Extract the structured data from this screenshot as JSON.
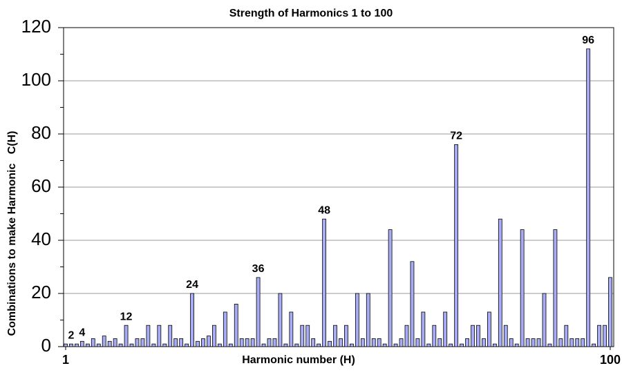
{
  "chart_data": {
    "type": "bar",
    "title": "Strength of Harmonics 1 to 100",
    "x_label": "Harmonic number (H)",
    "y_label": "Combinations to make Harmonic   C(H)",
    "x": [
      1,
      2,
      3,
      4,
      5,
      6,
      7,
      8,
      9,
      10,
      11,
      12,
      13,
      14,
      15,
      16,
      17,
      18,
      19,
      20,
      21,
      22,
      23,
      24,
      25,
      26,
      27,
      28,
      29,
      30,
      31,
      32,
      33,
      34,
      35,
      36,
      37,
      38,
      39,
      40,
      41,
      42,
      43,
      44,
      45,
      46,
      47,
      48,
      49,
      50,
      51,
      52,
      53,
      54,
      55,
      56,
      57,
      58,
      59,
      60,
      61,
      62,
      63,
      64,
      65,
      66,
      67,
      68,
      69,
      70,
      71,
      72,
      73,
      74,
      75,
      76,
      77,
      78,
      79,
      80,
      81,
      82,
      83,
      84,
      85,
      86,
      87,
      88,
      89,
      90,
      91,
      92,
      93,
      94,
      95,
      96,
      97,
      98,
      99,
      100
    ],
    "values": [
      1,
      1,
      1,
      2,
      1,
      3,
      1,
      4,
      2,
      3,
      1,
      8,
      1,
      3,
      3,
      8,
      1,
      8,
      1,
      8,
      3,
      3,
      1,
      20,
      2,
      3,
      4,
      8,
      1,
      13,
      1,
      16,
      3,
      3,
      3,
      26,
      1,
      3,
      3,
      20,
      1,
      13,
      1,
      8,
      8,
      3,
      1,
      48,
      2,
      8,
      3,
      8,
      1,
      20,
      3,
      20,
      3,
      3,
      1,
      44,
      1,
      3,
      8,
      32,
      3,
      13,
      1,
      8,
      3,
      13,
      1,
      76,
      1,
      3,
      8,
      8,
      3,
      13,
      1,
      48,
      8,
      3,
      1,
      44,
      3,
      3,
      3,
      20,
      1,
      44,
      3,
      8,
      3,
      3,
      3,
      112,
      1,
      8,
      8,
      26
    ],
    "color": "#a8acf4",
    "xlim": [
      1,
      100
    ],
    "xticks": [
      1,
      100
    ],
    "ylim": [
      0,
      120
    ],
    "yticks": [
      0,
      20,
      40,
      60,
      80,
      100,
      120
    ],
    "yminorticks": [
      10,
      30,
      50,
      70,
      90,
      110
    ],
    "grid": true,
    "annotations": [
      {
        "x": 2,
        "text": "2"
      },
      {
        "x": 4,
        "text": "4"
      },
      {
        "x": 12,
        "text": "12"
      },
      {
        "x": 24,
        "text": "24"
      },
      {
        "x": 36,
        "text": "36"
      },
      {
        "x": 48,
        "text": "48"
      },
      {
        "x": 72,
        "text": "72"
      },
      {
        "x": 96,
        "text": "96"
      }
    ]
  }
}
